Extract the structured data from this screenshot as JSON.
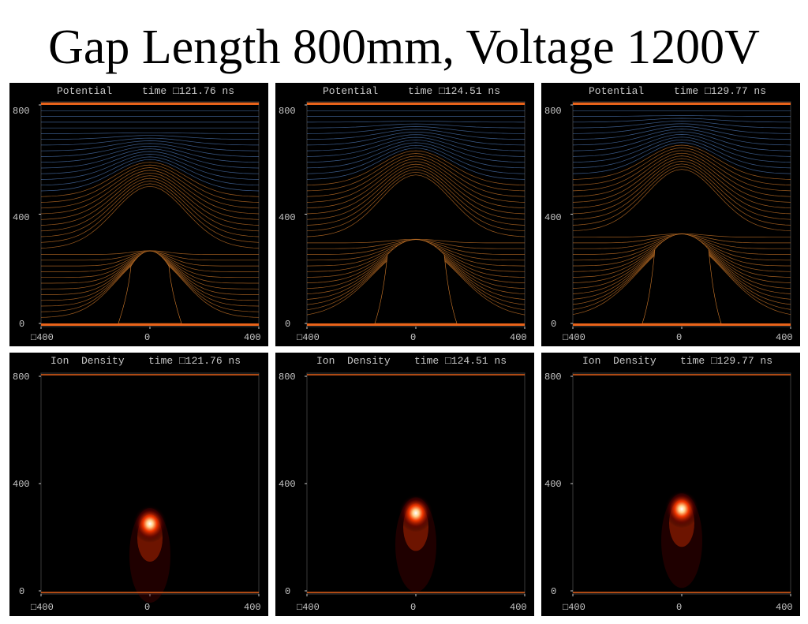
{
  "slide": {
    "title": "Gap Length 800mm, Voltage 1200V"
  },
  "colors": {
    "background": "#ffffff",
    "panel_background": "#000000",
    "axis_text": "#c8c8c8",
    "electrode": "#e8631a",
    "equipotential_upper": "#4f79b8",
    "equipotential_lower": "#d07a2a",
    "ion_density_core": "#ffffff",
    "ion_density_mid": "#ff3a00",
    "ion_density_outer": "#5a0000"
  },
  "axes": {
    "y_ticks": [
      "800",
      "400",
      "0"
    ],
    "x_ticks": [
      "□400",
      "0",
      "400"
    ],
    "x_range": [
      -400,
      400
    ],
    "y_range": [
      0,
      800
    ]
  },
  "potential_panels": [
    {
      "label": "Potential",
      "time": "time □121.76 ns",
      "streamer_head_y": 268,
      "streamer_half_width": 30
    },
    {
      "label": "Potential",
      "time": "time □124.51 ns",
      "streamer_head_y": 310,
      "streamer_half_width": 42
    },
    {
      "label": "Potential",
      "time": "time □129.77 ns",
      "streamer_head_y": 330,
      "streamer_half_width": 40
    }
  ],
  "density_panels": [
    {
      "label": "Ion  Density",
      "time": "time □121.76 ns",
      "peak_y": 250,
      "peak_x": 0
    },
    {
      "label": "Ion  Density",
      "time": "time □124.51 ns",
      "peak_y": 290,
      "peak_x": 0
    },
    {
      "label": "Ion  Density",
      "time": "time □129.77 ns",
      "peak_y": 305,
      "peak_x": 0
    }
  ]
}
